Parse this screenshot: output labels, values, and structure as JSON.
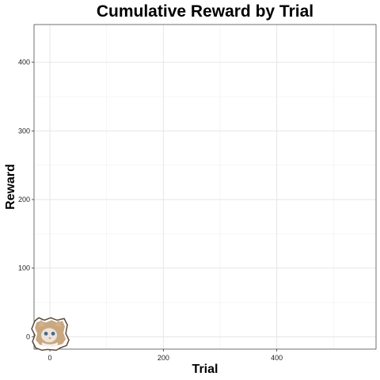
{
  "chart_data": {
    "type": "scatter",
    "title": "Cumulative Reward by Trial",
    "xlabel": "Trial",
    "ylabel": "Reward",
    "xlim": [
      -28,
      575
    ],
    "ylim": [
      -18,
      455
    ],
    "xticks": [
      0,
      200,
      400
    ],
    "yticks": [
      0,
      100,
      200,
      300,
      400
    ],
    "x_minor_gridlines": [
      100,
      300,
      500
    ],
    "y_minor_gridlines": [
      50,
      150,
      250,
      350
    ],
    "grid": true,
    "points": [
      {
        "x": 0,
        "y": 0,
        "marker": "cat-face-image"
      }
    ]
  }
}
